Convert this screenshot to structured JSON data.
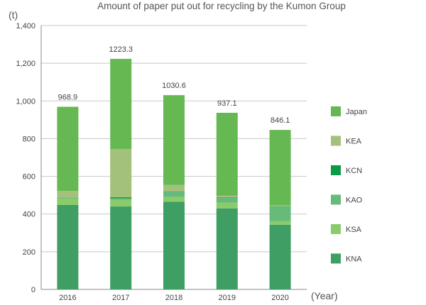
{
  "chart_data": {
    "type": "bar",
    "stacked": true,
    "title": "Amount of paper put out for recycling by the Kumon Group",
    "y_unit": "(t)",
    "x_unit": "(Year)",
    "categories": [
      "2016",
      "2017",
      "2018",
      "2019",
      "2020"
    ],
    "ylim": [
      0,
      1400
    ],
    "yticks": [
      "0",
      "200",
      "400",
      "600",
      "800",
      "1,000",
      "1,200",
      "1,400"
    ],
    "ytick_values": [
      0,
      200,
      400,
      600,
      800,
      1000,
      1200,
      1400
    ],
    "grid": true,
    "legend_position": "right",
    "totals": [
      "968.9",
      "1223.3",
      "1030.6",
      "937.1",
      "846.1"
    ],
    "total_values": [
      968.9,
      1223.3,
      1030.6,
      937.1,
      846.1
    ],
    "series": [
      {
        "name": "KNA",
        "color": "#3e9e63",
        "values": [
          448,
          440,
          465,
          430,
          343
        ]
      },
      {
        "name": "KSA",
        "color": "#8acb6a",
        "values": [
          35,
          35,
          25,
          30,
          20
        ]
      },
      {
        "name": "KAO",
        "color": "#66bb7a",
        "values": [
          0,
          8,
          25,
          25,
          75
        ]
      },
      {
        "name": "KCN",
        "color": "#0c9a46",
        "values": [
          2,
          6,
          3,
          3,
          2
        ]
      },
      {
        "name": "KEA",
        "color": "#a3c17a",
        "values": [
          37,
          255,
          36,
          9,
          5
        ]
      },
      {
        "name": "Japan",
        "color": "#66b852",
        "values": [
          446.9,
          479.3,
          476.6,
          440.1,
          401.1
        ]
      }
    ],
    "legend_order": [
      "Japan",
      "KEA",
      "KCN",
      "KAO",
      "KSA",
      "KNA"
    ]
  }
}
